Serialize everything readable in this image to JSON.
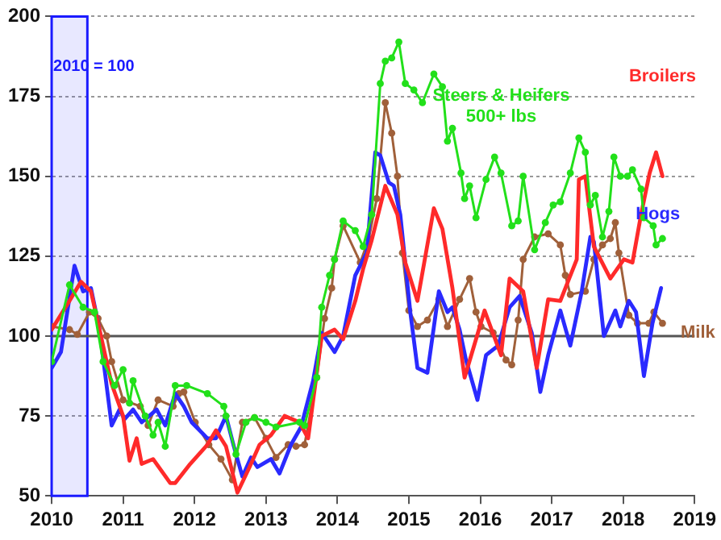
{
  "chart_data": {
    "type": "line",
    "xlim": [
      2010,
      2019
    ],
    "xticks": [
      2010,
      2011,
      2012,
      2013,
      2014,
      2015,
      2016,
      2017,
      2018,
      2019
    ],
    "ylim": [
      50,
      200
    ],
    "yticks": [
      50,
      75,
      100,
      125,
      150,
      175,
      200
    ],
    "grid": "y",
    "legend": false,
    "ref_lines": [
      {
        "axis": "y",
        "value": 100,
        "color": "#555555"
      }
    ],
    "bands": [
      {
        "axis": "x",
        "from": 2010,
        "to": 2010.5,
        "label": "2010 = 100",
        "color": "#1a1aff"
      }
    ],
    "series": [
      {
        "name": "Steers & Heifers 500+ lbs",
        "color": "#22e01a",
        "marker": "circle",
        "x": [
          2010.0,
          2010.25,
          2010.44,
          2010.6,
          2010.72,
          2010.88,
          2011.0,
          2011.09,
          2011.14,
          2011.31,
          2011.42,
          2011.49,
          2011.59,
          2011.73,
          2011.89,
          2012.18,
          2012.41,
          2012.44,
          2012.58,
          2012.72,
          2012.84,
          2013.0,
          2013.14,
          2013.47,
          2013.54,
          2013.71,
          2013.78,
          2013.89,
          2013.96,
          2014.08,
          2014.25,
          2014.36,
          2014.48,
          2014.6,
          2014.67,
          2014.76,
          2014.86,
          2014.95,
          2015.07,
          2015.19,
          2015.35,
          2015.47,
          2015.54,
          2015.61,
          2015.73,
          2015.78,
          2015.85,
          2015.94,
          2016.08,
          2016.2,
          2016.29,
          2016.44,
          2016.53,
          2016.6,
          2016.76,
          2016.91,
          2017.02,
          2017.12,
          2017.26,
          2017.38,
          2017.47,
          2017.54,
          2017.61,
          2017.71,
          2017.8,
          2017.87,
          2017.96,
          2018.06,
          2018.13,
          2018.25,
          2018.29,
          2018.42,
          2018.46,
          2018.55
        ],
        "values": [
          92,
          116,
          109,
          107.5,
          92,
          84.5,
          89.5,
          79,
          86,
          75,
          69,
          73,
          65.5,
          84.5,
          84.5,
          82,
          78,
          75,
          63,
          73,
          74.5,
          73,
          71.5,
          73,
          72,
          87,
          109,
          119,
          124,
          136,
          133,
          128,
          138,
          179,
          186,
          187,
          192,
          179,
          177,
          173,
          182,
          178,
          161,
          165,
          151,
          143,
          147,
          137,
          149,
          156,
          151,
          134.5,
          136,
          150,
          127,
          135.5,
          141,
          142,
          151,
          162,
          157.5,
          141,
          144,
          131,
          139,
          156,
          150,
          150,
          152,
          146,
          137,
          134.5,
          128.5,
          130.5
        ]
      },
      {
        "name": "Broilers",
        "color": "#ff2a2a",
        "marker": "none",
        "x": [
          2010.0,
          2010.25,
          2010.41,
          2010.55,
          2010.67,
          2010.84,
          2011.0,
          2011.09,
          2011.19,
          2011.26,
          2011.42,
          2011.66,
          2011.73,
          2011.94,
          2012.18,
          2012.3,
          2012.44,
          2012.6,
          2012.77,
          2012.91,
          2013.07,
          2013.26,
          2013.47,
          2013.59,
          2013.78,
          2013.96,
          2014.08,
          2014.25,
          2014.36,
          2014.48,
          2014.67,
          2014.84,
          2014.95,
          2015.12,
          2015.35,
          2015.47,
          2015.61,
          2015.78,
          2016.06,
          2016.29,
          2016.41,
          2016.6,
          2016.79,
          2016.95,
          2017.12,
          2017.35,
          2017.38,
          2017.47,
          2017.59,
          2017.82,
          2018.01,
          2018.13,
          2018.25,
          2018.37,
          2018.46,
          2018.55
        ],
        "values": [
          102,
          111,
          117,
          114,
          102,
          85,
          75,
          61,
          68,
          60,
          61.5,
          54,
          54,
          60,
          66,
          70.5,
          65.5,
          51,
          59,
          66,
          69,
          75,
          73,
          68,
          100,
          102,
          99,
          111,
          121,
          130,
          147,
          138,
          123,
          111,
          140,
          133.5,
          115,
          87,
          108,
          94,
          118,
          114,
          90,
          111.5,
          111,
          124,
          149,
          150,
          128,
          118,
          124,
          123,
          138,
          151,
          157.5,
          150
        ]
      },
      {
        "name": "Hogs",
        "color": "#2a2aff",
        "marker": "none",
        "x": [
          2010.0,
          2010.13,
          2010.32,
          2010.44,
          2010.55,
          2010.67,
          2010.84,
          2010.95,
          2011.02,
          2011.14,
          2011.26,
          2011.47,
          2011.59,
          2011.73,
          2011.85,
          2011.96,
          2012.18,
          2012.3,
          2012.44,
          2012.55,
          2012.67,
          2012.79,
          2012.88,
          2013.07,
          2013.19,
          2013.35,
          2013.49,
          2013.66,
          2013.78,
          2013.96,
          2014.08,
          2014.25,
          2014.41,
          2014.53,
          2014.6,
          2014.72,
          2014.79,
          2014.88,
          2015.02,
          2015.12,
          2015.26,
          2015.42,
          2015.54,
          2015.61,
          2015.71,
          2015.8,
          2015.96,
          2016.08,
          2016.25,
          2016.41,
          2016.55,
          2016.72,
          2016.84,
          2016.95,
          2017.12,
          2017.26,
          2017.42,
          2017.54,
          2017.59,
          2017.73,
          2017.89,
          2017.96,
          2018.08,
          2018.18,
          2018.29,
          2018.41,
          2018.53
        ],
        "values": [
          90,
          95,
          122,
          114,
          115,
          102,
          72,
          77,
          74,
          77,
          73,
          77,
          72,
          82,
          78,
          73,
          68,
          68,
          75,
          65.5,
          56,
          62,
          59,
          61.5,
          57,
          66,
          71.5,
          86,
          101,
          95,
          100,
          119,
          126,
          157.5,
          156.5,
          148,
          147,
          138,
          107.5,
          90,
          88.5,
          114,
          107.5,
          109,
          102,
          92.5,
          80,
          94,
          97,
          109,
          112.5,
          101,
          82.5,
          94,
          108,
          97,
          114,
          131,
          129.5,
          100,
          108,
          103,
          111,
          107.5,
          87.5,
          104,
          115
        ]
      },
      {
        "name": "Milk",
        "color": "#a0603a",
        "marker": "circle",
        "x": [
          2010.0,
          2010.25,
          2010.36,
          2010.53,
          2010.65,
          2010.77,
          2010.84,
          2011.0,
          2011.24,
          2011.35,
          2011.49,
          2011.7,
          2011.78,
          2011.85,
          2012.01,
          2012.2,
          2012.37,
          2012.53,
          2012.67,
          2012.84,
          2013.0,
          2013.14,
          2013.31,
          2013.42,
          2013.54,
          2013.71,
          2013.82,
          2013.92,
          2013.96,
          2014.08,
          2014.32,
          2014.44,
          2014.55,
          2014.67,
          2014.76,
          2014.84,
          2014.91,
          2015.0,
          2015.12,
          2015.26,
          2015.42,
          2015.54,
          2015.71,
          2015.85,
          2015.94,
          2016.01,
          2016.18,
          2016.36,
          2016.44,
          2016.53,
          2016.6,
          2016.76,
          2016.95,
          2017.12,
          2017.19,
          2017.26,
          2017.47,
          2017.59,
          2017.71,
          2017.82,
          2017.89,
          2017.94,
          2018.08,
          2018.2,
          2018.36,
          2018.43,
          2018.55
        ],
        "values": [
          103,
          102,
          100.5,
          107.5,
          105.5,
          100,
          92,
          80,
          78,
          72,
          80,
          78,
          82,
          82.5,
          73,
          66,
          61.5,
          55,
          73,
          74.5,
          68,
          62,
          66,
          65.5,
          66,
          87,
          105.5,
          115,
          124,
          134.5,
          123,
          130.5,
          143,
          173,
          163.5,
          150,
          126,
          108,
          103,
          105,
          111.5,
          103,
          111.5,
          118,
          107.5,
          103,
          101,
          92.5,
          91,
          105,
          124,
          131,
          132,
          128.5,
          119,
          113,
          114,
          124,
          128.5,
          130.5,
          135.5,
          126,
          106.5,
          104,
          104,
          107.5,
          104
        ]
      }
    ]
  }
}
